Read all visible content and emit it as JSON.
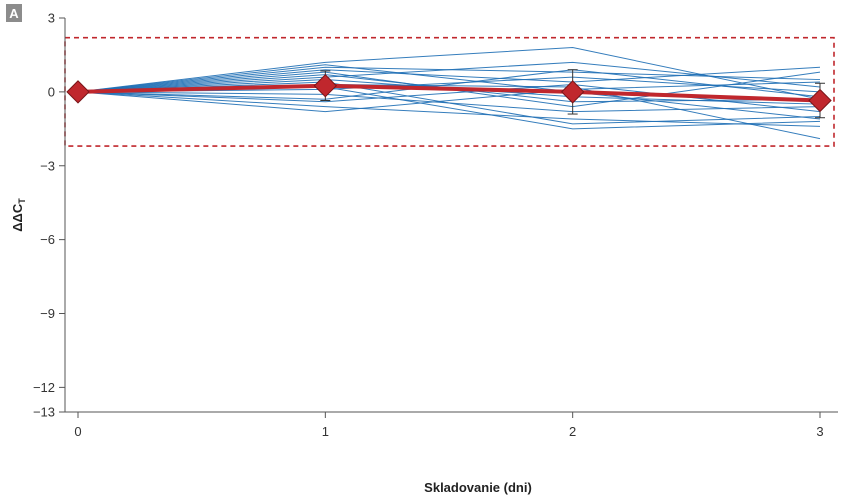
{
  "panel_label": "A",
  "chart_data": {
    "type": "line",
    "xlabel": "Skladovanie (dni)",
    "ylabel": "ΔΔC",
    "ylabel_subscript": "T",
    "x": [
      0,
      1,
      2,
      3
    ],
    "xticks": [
      "0",
      "1",
      "2",
      "3"
    ],
    "yticks": [
      {
        "value": 3,
        "label": "3"
      },
      {
        "value": 0,
        "label": "0"
      },
      {
        "value": -3,
        "label": "−3"
      },
      {
        "value": -6,
        "label": "−6"
      },
      {
        "value": -9,
        "label": "−9"
      },
      {
        "value": -12,
        "label": "−12"
      },
      {
        "value": -13,
        "label": "−13"
      }
    ],
    "xlim": [
      0,
      3
    ],
    "ylim": [
      -13,
      3
    ],
    "grid": false,
    "threshold_box": {
      "upper": 2.2,
      "lower": -2.2,
      "color": "#c0272d",
      "style": "dashed"
    },
    "series_color": "#1f6fb5",
    "series": [
      {
        "values": [
          0,
          1.2,
          1.8,
          -0.3
        ]
      },
      {
        "values": [
          0,
          1.0,
          0.8,
          0.5
        ]
      },
      {
        "values": [
          0,
          0.9,
          0.4,
          1.0
        ]
      },
      {
        "values": [
          0,
          0.8,
          -0.6,
          0.8
        ]
      },
      {
        "values": [
          0,
          0.6,
          1.2,
          0.2
        ]
      },
      {
        "values": [
          0,
          0.5,
          -0.2,
          -0.5
        ]
      },
      {
        "values": [
          0,
          0.4,
          -1.3,
          -1.0
        ]
      },
      {
        "values": [
          0,
          0.3,
          0.2,
          -1.9
        ]
      },
      {
        "values": [
          0,
          0.2,
          -1.5,
          -1.2
        ]
      },
      {
        "values": [
          0,
          0.1,
          0.6,
          0.0
        ]
      },
      {
        "values": [
          0,
          -0.1,
          -0.8,
          -0.6
        ]
      },
      {
        "values": [
          0,
          -0.3,
          0.9,
          -0.2
        ]
      },
      {
        "values": [
          0,
          -0.4,
          0.3,
          -0.8
        ]
      },
      {
        "values": [
          0,
          -0.6,
          -1.1,
          -1.4
        ]
      },
      {
        "values": [
          0,
          -0.8,
          0.1,
          0.4
        ]
      },
      {
        "values": [
          0,
          1.1,
          0.0,
          -1.1
        ]
      },
      {
        "values": [
          0,
          0.7,
          -0.4,
          -0.3
        ]
      }
    ],
    "mean_series": {
      "values": [
        0,
        0.25,
        0.0,
        -0.35
      ],
      "error": [
        0,
        0.6,
        0.9,
        0.7
      ],
      "line_color": "#c0272d",
      "marker_color": "#c0272d",
      "marker": "diamond"
    }
  }
}
